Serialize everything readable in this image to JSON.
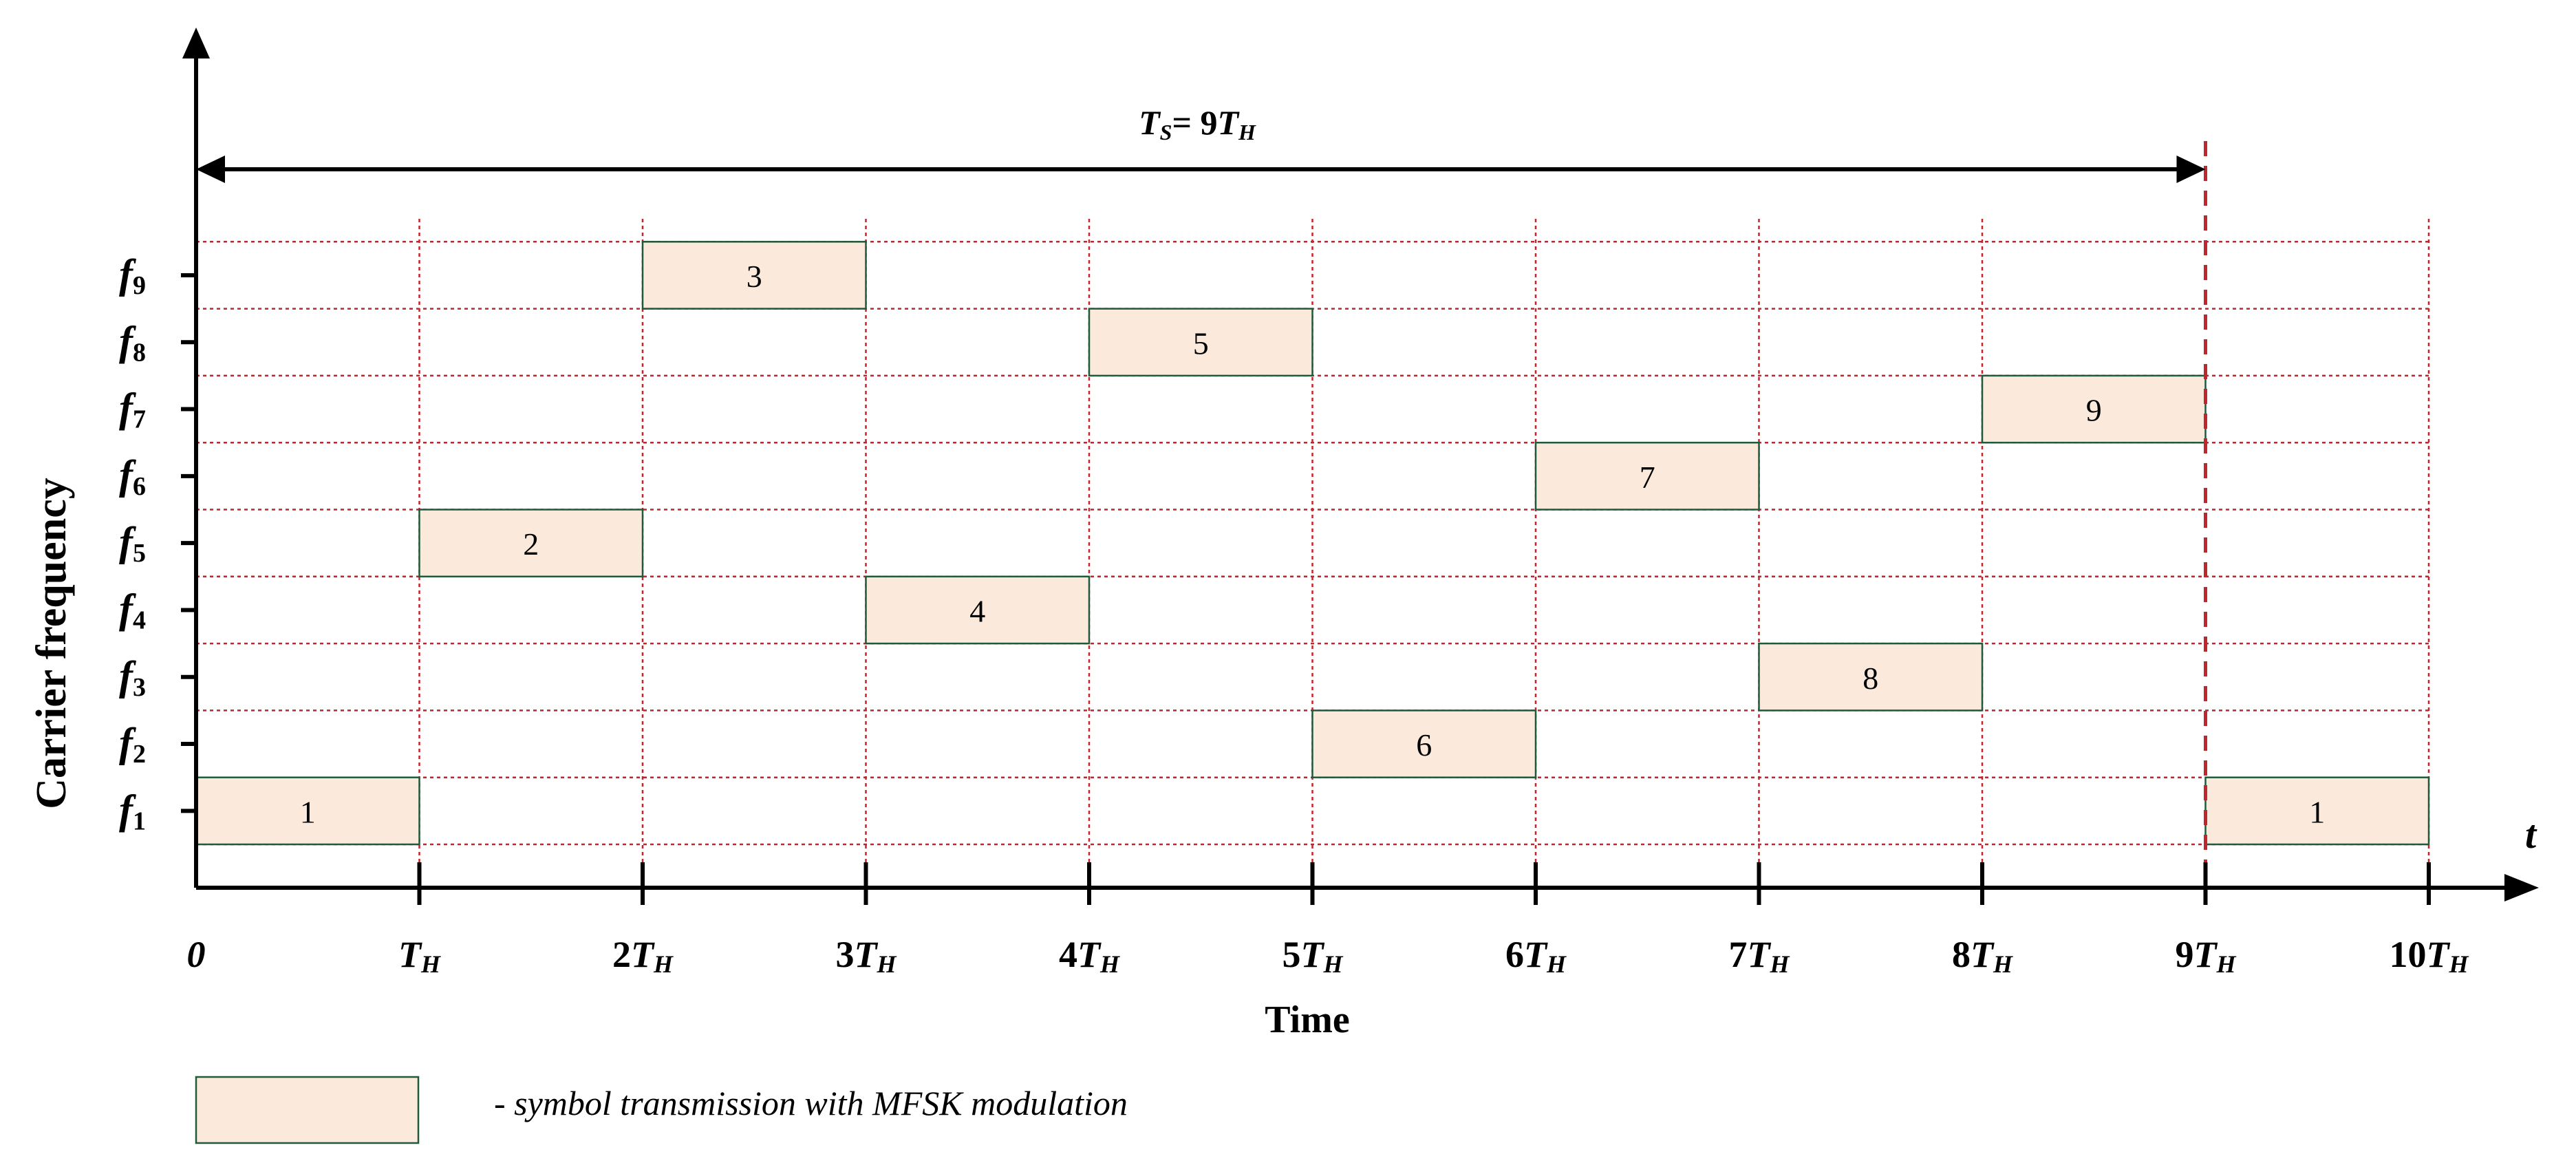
{
  "period_label": {
    "main": "T",
    "sub": "S",
    "eq": "= 9",
    "unit": "T",
    "unit_sub": "H"
  },
  "y_axis": {
    "title": "Carrier frequency",
    "freq_symbol": "f",
    "levels": [
      "1",
      "2",
      "3",
      "4",
      "5",
      "6",
      "7",
      "8",
      "9"
    ]
  },
  "x_axis": {
    "title": "Time",
    "var_label": "t",
    "ticks": [
      {
        "coef": "0",
        "unit": false
      },
      {
        "coef": "",
        "unit": true
      },
      {
        "coef": "2",
        "unit": true
      },
      {
        "coef": "3",
        "unit": true
      },
      {
        "coef": "4",
        "unit": true
      },
      {
        "coef": "5",
        "unit": true
      },
      {
        "coef": "6",
        "unit": true
      },
      {
        "coef": "7",
        "unit": true
      },
      {
        "coef": "8",
        "unit": true
      },
      {
        "coef": "9",
        "unit": true
      },
      {
        "coef": "10",
        "unit": true
      }
    ],
    "unit_main": "T",
    "unit_sub": "H"
  },
  "hops": [
    {
      "slot": 0,
      "freq": 1,
      "label": "1"
    },
    {
      "slot": 1,
      "freq": 5,
      "label": "2"
    },
    {
      "slot": 2,
      "freq": 9,
      "label": "3"
    },
    {
      "slot": 3,
      "freq": 4,
      "label": "4"
    },
    {
      "slot": 4,
      "freq": 8,
      "label": "5"
    },
    {
      "slot": 5,
      "freq": 2,
      "label": "6"
    },
    {
      "slot": 6,
      "freq": 6,
      "label": "7"
    },
    {
      "slot": 7,
      "freq": 3,
      "label": "8"
    },
    {
      "slot": 8,
      "freq": 7,
      "label": "9"
    },
    {
      "slot": 9,
      "freq": 1,
      "label": "1"
    }
  ],
  "legend": {
    "text": "- symbol transmission with MFSK modulation"
  },
  "colors": {
    "hop_fill": "#fbeadb",
    "hop_stroke": "#1f5a3a",
    "grid": "#c0262d",
    "period_marker": "#c0262d",
    "axis": "#000000"
  }
}
